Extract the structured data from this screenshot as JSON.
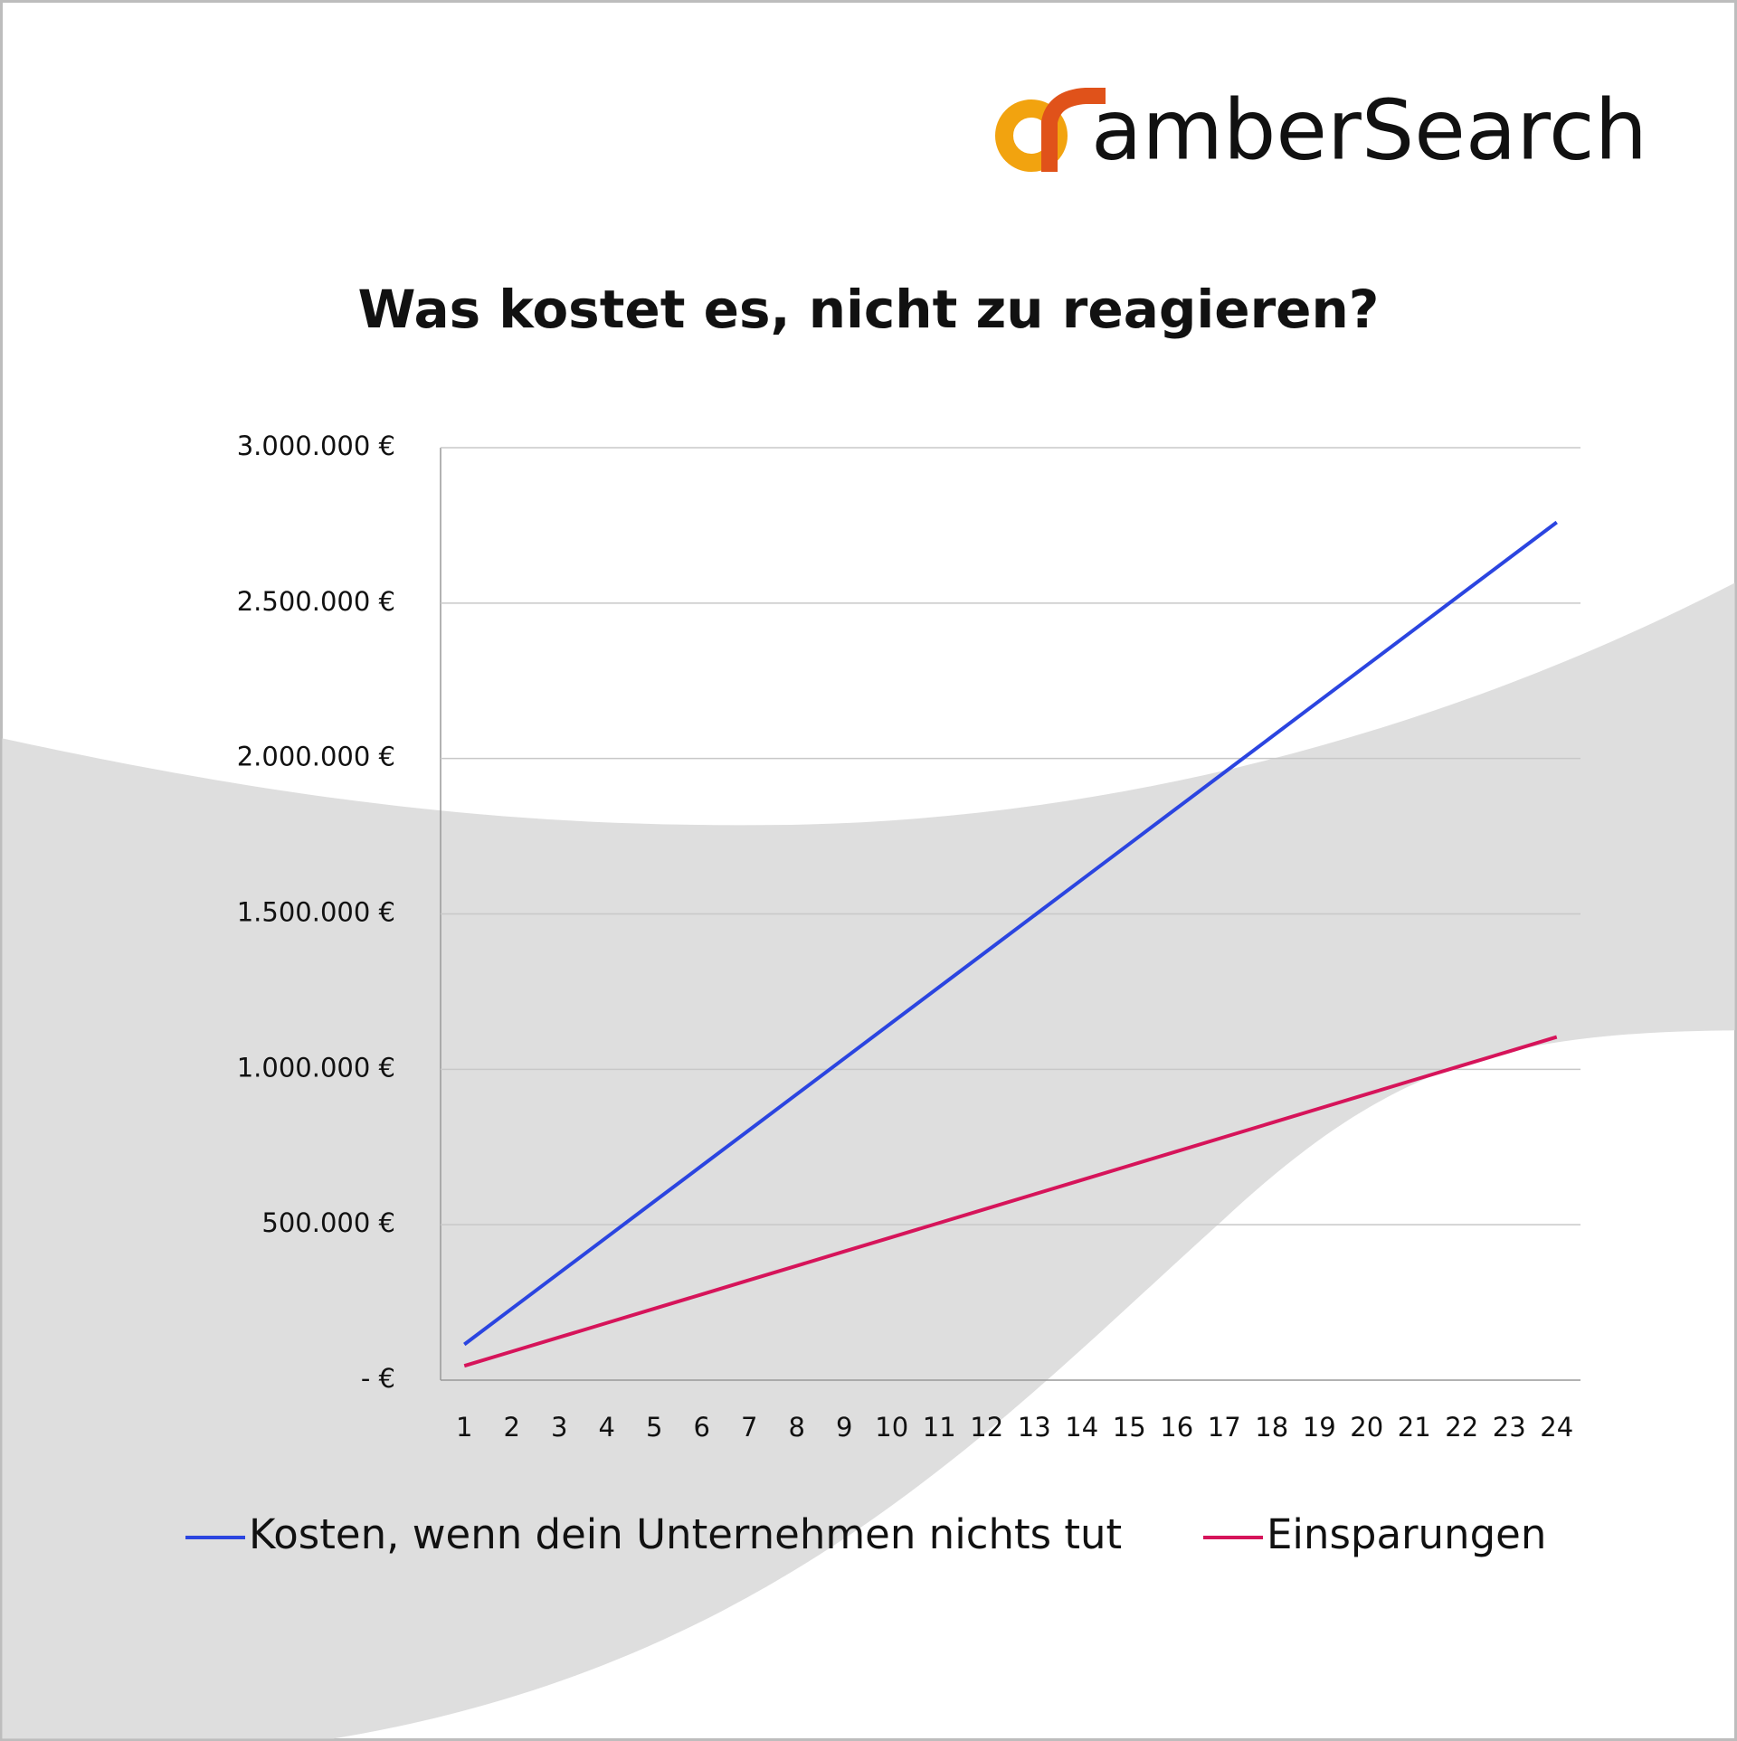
{
  "logo": "amberSearch",
  "chart_data": {
    "type": "line",
    "title": "Was kostet es, nicht zu reagieren?",
    "categories": [
      "1",
      "2",
      "3",
      "4",
      "5",
      "6",
      "7",
      "8",
      "9",
      "10",
      "11",
      "12",
      "13",
      "14",
      "15",
      "16",
      "17",
      "18",
      "19",
      "20",
      "21",
      "22",
      "23",
      "24"
    ],
    "series": [
      {
        "name": "Kosten, wenn dein Unternehmen nichts tut",
        "color": "#2b45e0",
        "values": [
          115000,
          230000,
          345000,
          460000,
          575000,
          690000,
          805000,
          920000,
          1035000,
          1150000,
          1265000,
          1380000,
          1495000,
          1610000,
          1725000,
          1840000,
          1955000,
          2070000,
          2185000,
          2300000,
          2415000,
          2530000,
          2645000,
          2760000
        ]
      },
      {
        "name": "Einsparungen",
        "color": "#d6145a",
        "values": [
          46000,
          92000,
          138000,
          184000,
          230000,
          276000,
          322000,
          368000,
          414000,
          460000,
          506000,
          552000,
          598000,
          644000,
          690000,
          736000,
          782000,
          828000,
          874000,
          920000,
          966000,
          1012000,
          1058000,
          1104000
        ]
      }
    ],
    "ylim": [
      0,
      3000000
    ],
    "yticks": [
      {
        "value": 0,
        "label": "-   €"
      },
      {
        "value": 500000,
        "label": "500.000 €"
      },
      {
        "value": 1000000,
        "label": "1.000.000 €"
      },
      {
        "value": 1500000,
        "label": "1.500.000 €"
      },
      {
        "value": 2000000,
        "label": "2.000.000 €"
      },
      {
        "value": 2500000,
        "label": "2.500.000 €"
      },
      {
        "value": 3000000,
        "label": "3.000.000 €"
      }
    ],
    "grid": true
  }
}
